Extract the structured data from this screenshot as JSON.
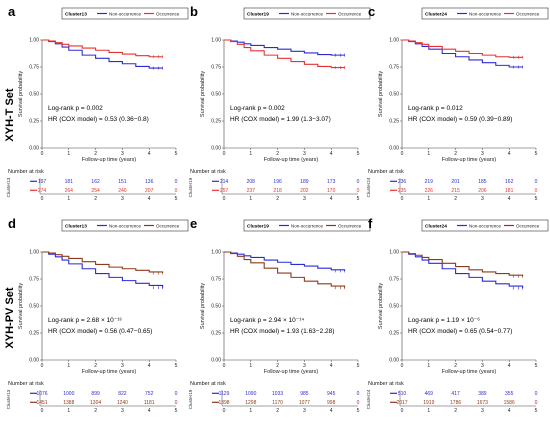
{
  "set_labels": [
    "XYH-T Set",
    "XYH-PV Set"
  ],
  "common": {
    "xlabel": "Follow-up time (years)",
    "ylabel": "Survival probability",
    "risk_title": "Number at risk",
    "xticks": [
      "0",
      "1",
      "2",
      "3",
      "4",
      "5"
    ],
    "yticks": [
      "0.00",
      "0.25",
      "0.50",
      "0.75",
      "1.00"
    ],
    "series_names": [
      "Non-occurrence",
      "Occurrence"
    ]
  },
  "chart_data": [
    {
      "type": "line",
      "panel": "a",
      "cluster": "Cluster13",
      "row": 0,
      "col": 0,
      "colors": [
        "#2b2bd6",
        "#e63232"
      ],
      "x_range": [
        0,
        5
      ],
      "ylim": [
        0,
        1
      ],
      "logrank": "Log-rank p = 0.002",
      "hr": "HR (COX model) = 0.53 (0.36−0.8)",
      "series": [
        {
          "name": "Non-occurrence",
          "x": [
            0,
            0.25,
            0.5,
            0.75,
            1,
            1.5,
            2,
            2.5,
            3,
            3.5,
            4,
            4.5
          ],
          "values": [
            1.0,
            0.985,
            0.965,
            0.935,
            0.905,
            0.86,
            0.83,
            0.8,
            0.78,
            0.755,
            0.74,
            0.74
          ]
        },
        {
          "name": "Occurrence",
          "x": [
            0,
            0.25,
            0.5,
            0.75,
            1,
            1.5,
            2,
            2.5,
            3,
            3.5,
            4,
            4.5
          ],
          "values": [
            1.0,
            0.99,
            0.975,
            0.96,
            0.945,
            0.925,
            0.905,
            0.885,
            0.87,
            0.855,
            0.845,
            0.845
          ]
        }
      ],
      "risk": {
        "x": [
          0,
          1,
          2,
          3,
          4,
          5
        ],
        "non_occurrence": [
          "197",
          "181",
          "162",
          "151",
          "136",
          "0"
        ],
        "occurrence": [
          "274",
          "264",
          "254",
          "240",
          "207",
          "0"
        ]
      }
    },
    {
      "type": "line",
      "panel": "b",
      "cluster": "Cluster19",
      "row": 0,
      "col": 1,
      "colors": [
        "#2b2bd6",
        "#e63232"
      ],
      "x_range": [
        0,
        5
      ],
      "ylim": [
        0,
        1
      ],
      "logrank": "Log-rank p = 0.002",
      "hr": "HR (COX model) = 1.99 (1.3−3.07)",
      "series": [
        {
          "name": "Non-occurrence",
          "x": [
            0,
            0.25,
            0.5,
            0.75,
            1,
            1.5,
            2,
            2.5,
            3,
            3.5,
            4,
            4.5
          ],
          "values": [
            1.0,
            0.99,
            0.98,
            0.965,
            0.95,
            0.93,
            0.915,
            0.895,
            0.88,
            0.865,
            0.86,
            0.86
          ]
        },
        {
          "name": "Occurrence",
          "x": [
            0,
            0.25,
            0.5,
            0.75,
            1,
            1.5,
            2,
            2.5,
            3,
            3.5,
            4,
            4.5
          ],
          "values": [
            1.0,
            0.985,
            0.96,
            0.93,
            0.9,
            0.86,
            0.83,
            0.8,
            0.775,
            0.755,
            0.745,
            0.745
          ]
        }
      ],
      "risk": {
        "x": [
          0,
          1,
          2,
          3,
          4,
          5
        ],
        "non_occurrence": [
          "214",
          "208",
          "196",
          "189",
          "173",
          "0"
        ],
        "occurrence": [
          "257",
          "237",
          "218",
          "202",
          "170",
          "0"
        ]
      }
    },
    {
      "type": "line",
      "panel": "c",
      "cluster": "Cluster24",
      "row": 0,
      "col": 2,
      "colors": [
        "#2b2bd6",
        "#e63232"
      ],
      "x_range": [
        0,
        5
      ],
      "ylim": [
        0,
        1
      ],
      "logrank": "Log-rank p = 0.012",
      "hr": "HR (COX model) = 0.59 (0.39−0.89)",
      "series": [
        {
          "name": "Non-occurrence",
          "x": [
            0,
            0.25,
            0.5,
            0.75,
            1,
            1.5,
            2,
            2.5,
            3,
            3.5,
            4,
            4.5
          ],
          "values": [
            1.0,
            0.985,
            0.965,
            0.94,
            0.915,
            0.875,
            0.845,
            0.815,
            0.79,
            0.765,
            0.75,
            0.75
          ]
        },
        {
          "name": "Occurrence",
          "x": [
            0,
            0.25,
            0.5,
            0.75,
            1,
            1.5,
            2,
            2.5,
            3,
            3.5,
            4,
            4.5
          ],
          "values": [
            1.0,
            0.99,
            0.975,
            0.96,
            0.94,
            0.915,
            0.895,
            0.875,
            0.86,
            0.845,
            0.84,
            0.84
          ]
        }
      ],
      "risk": {
        "x": [
          0,
          1,
          2,
          3,
          4,
          5
        ],
        "non_occurrence": [
          "236",
          "219",
          "201",
          "185",
          "162",
          "0"
        ],
        "occurrence": [
          "235",
          "226",
          "215",
          "206",
          "181",
          "0"
        ]
      }
    },
    {
      "type": "line",
      "panel": "d",
      "cluster": "Cluster13",
      "row": 1,
      "col": 0,
      "colors": [
        "#2b2bd6",
        "#8b3a1a"
      ],
      "x_range": [
        0,
        5
      ],
      "ylim": [
        0,
        1
      ],
      "logrank": "Log-rank p = 2.68 × 10⁻¹³",
      "hr": "HR (COX model) = 0.56 (0.47−0.65)",
      "series": [
        {
          "name": "Non-occurrence",
          "x": [
            0,
            0.25,
            0.5,
            0.75,
            1,
            1.5,
            2,
            2.5,
            3,
            3.5,
            4,
            4.5
          ],
          "values": [
            1.0,
            0.98,
            0.955,
            0.925,
            0.89,
            0.845,
            0.8,
            0.765,
            0.735,
            0.71,
            0.69,
            0.67
          ]
        },
        {
          "name": "Occurrence",
          "x": [
            0,
            0.25,
            0.5,
            0.75,
            1,
            1.5,
            2,
            2.5,
            3,
            3.5,
            4,
            4.5
          ],
          "values": [
            1.0,
            0.99,
            0.975,
            0.96,
            0.94,
            0.91,
            0.885,
            0.86,
            0.845,
            0.83,
            0.815,
            0.805
          ]
        }
      ],
      "risk": {
        "x": [
          0,
          1,
          2,
          3,
          4,
          5
        ],
        "non_occurrence": [
          "1076",
          "1000",
          "899",
          "822",
          "752",
          "0"
        ],
        "occurrence": [
          "1451",
          "1388",
          "1304",
          "1240",
          "1181",
          "0"
        ]
      }
    },
    {
      "type": "line",
      "panel": "e",
      "cluster": "Cluster19",
      "row": 1,
      "col": 1,
      "colors": [
        "#2b2bd6",
        "#8b3a1a"
      ],
      "x_range": [
        0,
        5
      ],
      "ylim": [
        0,
        1
      ],
      "logrank": "Log-rank p = 2.94 × 10⁻¹⁴",
      "hr": "HR (COX model) = 1.93 (1.63−2.28)",
      "series": [
        {
          "name": "Non-occurrence",
          "x": [
            0,
            0.25,
            0.5,
            0.75,
            1,
            1.5,
            2,
            2.5,
            3,
            3.5,
            4,
            4.5
          ],
          "values": [
            1.0,
            0.99,
            0.98,
            0.965,
            0.95,
            0.925,
            0.905,
            0.885,
            0.87,
            0.85,
            0.835,
            0.825
          ]
        },
        {
          "name": "Occurrence",
          "x": [
            0,
            0.25,
            0.5,
            0.75,
            1,
            1.5,
            2,
            2.5,
            3,
            3.5,
            4,
            4.5
          ],
          "values": [
            1.0,
            0.985,
            0.96,
            0.93,
            0.9,
            0.85,
            0.805,
            0.765,
            0.73,
            0.705,
            0.685,
            0.67
          ]
        }
      ],
      "risk": {
        "x": [
          0,
          1,
          2,
          3,
          4,
          5
        ],
        "non_occurrence": [
          "1129",
          "1090",
          "1033",
          "985",
          "945",
          "0"
        ],
        "occurrence": [
          "1398",
          "1298",
          "1170",
          "1077",
          "998",
          "0"
        ]
      }
    },
    {
      "type": "line",
      "panel": "f",
      "cluster": "Cluster24",
      "row": 1,
      "col": 2,
      "colors": [
        "#2b2bd6",
        "#8b3a1a"
      ],
      "x_range": [
        0,
        5
      ],
      "ylim": [
        0,
        1
      ],
      "logrank": "Log-rank p = 1.19 × 10⁻⁶",
      "hr": "HR (COX model) = 0.65 (0.54−0.77)",
      "series": [
        {
          "name": "Non-occurrence",
          "x": [
            0,
            0.25,
            0.5,
            0.75,
            1,
            1.5,
            2,
            2.5,
            3,
            3.5,
            4,
            4.5
          ],
          "values": [
            1.0,
            0.98,
            0.955,
            0.925,
            0.895,
            0.845,
            0.8,
            0.765,
            0.73,
            0.705,
            0.685,
            0.665
          ]
        },
        {
          "name": "Occurrence",
          "x": [
            0,
            0.25,
            0.5,
            0.75,
            1,
            1.5,
            2,
            2.5,
            3,
            3.5,
            4,
            4.5
          ],
          "values": [
            1.0,
            0.985,
            0.97,
            0.95,
            0.93,
            0.895,
            0.865,
            0.835,
            0.815,
            0.8,
            0.785,
            0.775
          ]
        }
      ],
      "risk": {
        "x": [
          0,
          1,
          2,
          3,
          4,
          5
        ],
        "non_occurrence": [
          "510",
          "469",
          "417",
          "389",
          "355",
          "0"
        ],
        "occurrence": [
          "2017",
          "1919",
          "1786",
          "1673",
          "1586",
          "0"
        ]
      }
    }
  ]
}
